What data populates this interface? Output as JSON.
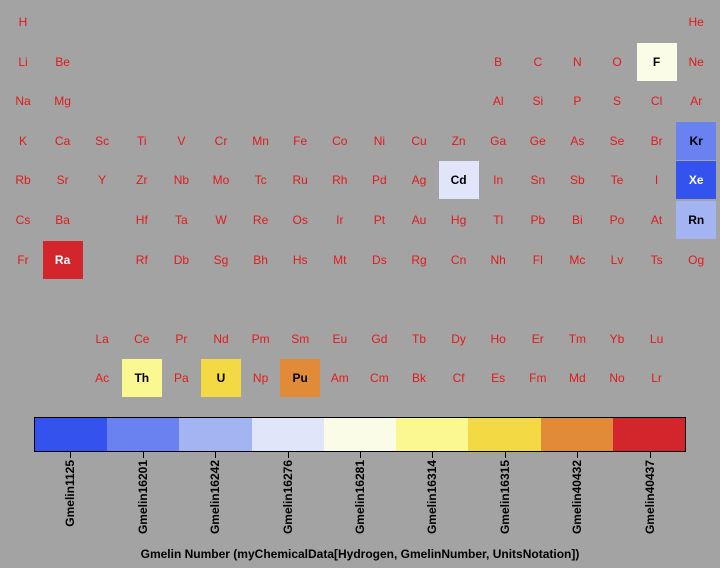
{
  "chart_data": {
    "type": "heatmap",
    "title": "",
    "elements": [
      {
        "s": "H",
        "r": 0,
        "c": 0
      },
      {
        "s": "He",
        "r": 0,
        "c": 17
      },
      {
        "s": "Li",
        "r": 1,
        "c": 0
      },
      {
        "s": "Be",
        "r": 1,
        "c": 1
      },
      {
        "s": "B",
        "r": 1,
        "c": 12
      },
      {
        "s": "C",
        "r": 1,
        "c": 13
      },
      {
        "s": "N",
        "r": 1,
        "c": 14
      },
      {
        "s": "O",
        "r": 1,
        "c": 15
      },
      {
        "s": "F",
        "r": 1,
        "c": 16,
        "gmelin": "Gmelin16281"
      },
      {
        "s": "Ne",
        "r": 1,
        "c": 17
      },
      {
        "s": "Na",
        "r": 2,
        "c": 0
      },
      {
        "s": "Mg",
        "r": 2,
        "c": 1
      },
      {
        "s": "Al",
        "r": 2,
        "c": 12
      },
      {
        "s": "Si",
        "r": 2,
        "c": 13
      },
      {
        "s": "P",
        "r": 2,
        "c": 14
      },
      {
        "s": "S",
        "r": 2,
        "c": 15
      },
      {
        "s": "Cl",
        "r": 2,
        "c": 16
      },
      {
        "s": "Ar",
        "r": 2,
        "c": 17
      },
      {
        "s": "K",
        "r": 3,
        "c": 0
      },
      {
        "s": "Ca",
        "r": 3,
        "c": 1
      },
      {
        "s": "Sc",
        "r": 3,
        "c": 2
      },
      {
        "s": "Ti",
        "r": 3,
        "c": 3
      },
      {
        "s": "V",
        "r": 3,
        "c": 4
      },
      {
        "s": "Cr",
        "r": 3,
        "c": 5
      },
      {
        "s": "Mn",
        "r": 3,
        "c": 6
      },
      {
        "s": "Fe",
        "r": 3,
        "c": 7
      },
      {
        "s": "Co",
        "r": 3,
        "c": 8
      },
      {
        "s": "Ni",
        "r": 3,
        "c": 9
      },
      {
        "s": "Cu",
        "r": 3,
        "c": 10
      },
      {
        "s": "Zn",
        "r": 3,
        "c": 11
      },
      {
        "s": "Ga",
        "r": 3,
        "c": 12
      },
      {
        "s": "Ge",
        "r": 3,
        "c": 13
      },
      {
        "s": "As",
        "r": 3,
        "c": 14
      },
      {
        "s": "Se",
        "r": 3,
        "c": 15
      },
      {
        "s": "Br",
        "r": 3,
        "c": 16
      },
      {
        "s": "Kr",
        "r": 3,
        "c": 17,
        "gmelin": "Gmelin16201"
      },
      {
        "s": "Rb",
        "r": 4,
        "c": 0
      },
      {
        "s": "Sr",
        "r": 4,
        "c": 1
      },
      {
        "s": "Y",
        "r": 4,
        "c": 2
      },
      {
        "s": "Zr",
        "r": 4,
        "c": 3
      },
      {
        "s": "Nb",
        "r": 4,
        "c": 4
      },
      {
        "s": "Mo",
        "r": 4,
        "c": 5
      },
      {
        "s": "Tc",
        "r": 4,
        "c": 6
      },
      {
        "s": "Ru",
        "r": 4,
        "c": 7
      },
      {
        "s": "Rh",
        "r": 4,
        "c": 8
      },
      {
        "s": "Pd",
        "r": 4,
        "c": 9
      },
      {
        "s": "Ag",
        "r": 4,
        "c": 10
      },
      {
        "s": "Cd",
        "r": 4,
        "c": 11,
        "gmelin": "Gmelin16276"
      },
      {
        "s": "In",
        "r": 4,
        "c": 12
      },
      {
        "s": "Sn",
        "r": 4,
        "c": 13
      },
      {
        "s": "Sb",
        "r": 4,
        "c": 14
      },
      {
        "s": "Te",
        "r": 4,
        "c": 15
      },
      {
        "s": "I",
        "r": 4,
        "c": 16
      },
      {
        "s": "Xe",
        "r": 4,
        "c": 17,
        "gmelin": "Gmelin1125"
      },
      {
        "s": "Cs",
        "r": 5,
        "c": 0
      },
      {
        "s": "Ba",
        "r": 5,
        "c": 1
      },
      {
        "s": "Hf",
        "r": 5,
        "c": 3
      },
      {
        "s": "Ta",
        "r": 5,
        "c": 4
      },
      {
        "s": "W",
        "r": 5,
        "c": 5
      },
      {
        "s": "Re",
        "r": 5,
        "c": 6
      },
      {
        "s": "Os",
        "r": 5,
        "c": 7
      },
      {
        "s": "Ir",
        "r": 5,
        "c": 8
      },
      {
        "s": "Pt",
        "r": 5,
        "c": 9
      },
      {
        "s": "Au",
        "r": 5,
        "c": 10
      },
      {
        "s": "Hg",
        "r": 5,
        "c": 11
      },
      {
        "s": "Tl",
        "r": 5,
        "c": 12
      },
      {
        "s": "Pb",
        "r": 5,
        "c": 13
      },
      {
        "s": "Bi",
        "r": 5,
        "c": 14
      },
      {
        "s": "Po",
        "r": 5,
        "c": 15
      },
      {
        "s": "At",
        "r": 5,
        "c": 16
      },
      {
        "s": "Rn",
        "r": 5,
        "c": 17,
        "gmelin": "Gmelin16242"
      },
      {
        "s": "Fr",
        "r": 6,
        "c": 0
      },
      {
        "s": "Ra",
        "r": 6,
        "c": 1,
        "gmelin": "Gmelin40437"
      },
      {
        "s": "Rf",
        "r": 6,
        "c": 3
      },
      {
        "s": "Db",
        "r": 6,
        "c": 4
      },
      {
        "s": "Sg",
        "r": 6,
        "c": 5
      },
      {
        "s": "Bh",
        "r": 6,
        "c": 6
      },
      {
        "s": "Hs",
        "r": 6,
        "c": 7
      },
      {
        "s": "Mt",
        "r": 6,
        "c": 8
      },
      {
        "s": "Ds",
        "r": 6,
        "c": 9
      },
      {
        "s": "Rg",
        "r": 6,
        "c": 10
      },
      {
        "s": "Cn",
        "r": 6,
        "c": 11
      },
      {
        "s": "Nh",
        "r": 6,
        "c": 12
      },
      {
        "s": "Fl",
        "r": 6,
        "c": 13
      },
      {
        "s": "Mc",
        "r": 6,
        "c": 14
      },
      {
        "s": "Lv",
        "r": 6,
        "c": 15
      },
      {
        "s": "Ts",
        "r": 6,
        "c": 16
      },
      {
        "s": "Og",
        "r": 6,
        "c": 17
      },
      {
        "s": "La",
        "r": 8,
        "c": 2
      },
      {
        "s": "Ce",
        "r": 8,
        "c": 3
      },
      {
        "s": "Pr",
        "r": 8,
        "c": 4
      },
      {
        "s": "Nd",
        "r": 8,
        "c": 5
      },
      {
        "s": "Pm",
        "r": 8,
        "c": 6
      },
      {
        "s": "Sm",
        "r": 8,
        "c": 7
      },
      {
        "s": "Eu",
        "r": 8,
        "c": 8
      },
      {
        "s": "Gd",
        "r": 8,
        "c": 9
      },
      {
        "s": "Tb",
        "r": 8,
        "c": 10
      },
      {
        "s": "Dy",
        "r": 8,
        "c": 11
      },
      {
        "s": "Ho",
        "r": 8,
        "c": 12
      },
      {
        "s": "Er",
        "r": 8,
        "c": 13
      },
      {
        "s": "Tm",
        "r": 8,
        "c": 14
      },
      {
        "s": "Yb",
        "r": 8,
        "c": 15
      },
      {
        "s": "Lu",
        "r": 8,
        "c": 16
      },
      {
        "s": "Ac",
        "r": 9,
        "c": 2
      },
      {
        "s": "Th",
        "r": 9,
        "c": 3,
        "gmelin": "Gmelin16314"
      },
      {
        "s": "Pa",
        "r": 9,
        "c": 4
      },
      {
        "s": "U",
        "r": 9,
        "c": 5,
        "gmelin": "Gmelin16315"
      },
      {
        "s": "Np",
        "r": 9,
        "c": 6
      },
      {
        "s": "Pu",
        "r": 9,
        "c": 7,
        "gmelin": "Gmelin40432"
      },
      {
        "s": "Am",
        "r": 9,
        "c": 8
      },
      {
        "s": "Cm",
        "r": 9,
        "c": 9
      },
      {
        "s": "Bk",
        "r": 9,
        "c": 10
      },
      {
        "s": "Cf",
        "r": 9,
        "c": 11
      },
      {
        "s": "Es",
        "r": 9,
        "c": 12
      },
      {
        "s": "Fm",
        "r": 9,
        "c": 13
      },
      {
        "s": "Md",
        "r": 9,
        "c": 14
      },
      {
        "s": "No",
        "r": 9,
        "c": 15
      },
      {
        "s": "Lr",
        "r": 9,
        "c": 16
      }
    ],
    "legend": {
      "title": "Gmelin Number (myChemicalData[Hydrogen, GmelinNumber, UnitsNotation])",
      "categories": [
        {
          "label": "Gmelin1125",
          "color": "#3352ee"
        },
        {
          "label": "Gmelin16201",
          "color": "#6a82ef"
        },
        {
          "label": "Gmelin16242",
          "color": "#a3b4f2"
        },
        {
          "label": "Gmelin16276",
          "color": "#e1e5fa"
        },
        {
          "label": "Gmelin16281",
          "color": "#fbfce7"
        },
        {
          "label": "Gmelin16314",
          "color": "#fcf891"
        },
        {
          "label": "Gmelin16315",
          "color": "#f3d944"
        },
        {
          "label": "Gmelin40432",
          "color": "#e18a38"
        },
        {
          "label": "Gmelin40437",
          "color": "#d2252c"
        }
      ]
    }
  },
  "colors": {
    "background": "#a3a3a3",
    "symbol_default": "#e21a1a",
    "symbol_on_dark": "#ffffff",
    "symbol_on_light": "#000000"
  }
}
